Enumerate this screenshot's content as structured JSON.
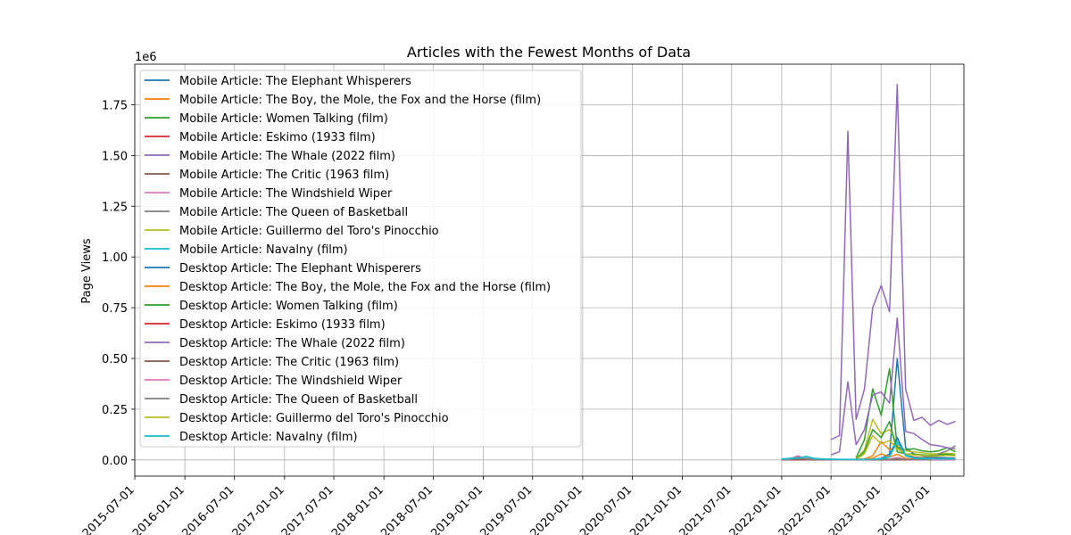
{
  "chart_data": {
    "type": "line",
    "title": "Articles with the Fewest Months of Data",
    "xlabel": "",
    "ylabel": "Page Views",
    "y_offset_label": "1e6",
    "ylim": [
      -80000,
      1950000
    ],
    "xlim": [
      "2015-07-01",
      "2023-11-01"
    ],
    "grid": true,
    "legend_position": "upper-left",
    "x_ticks": [
      "2015-07-01",
      "2016-01-01",
      "2016-07-01",
      "2017-01-01",
      "2017-07-01",
      "2018-01-01",
      "2018-07-01",
      "2019-01-01",
      "2019-07-01",
      "2020-01-01",
      "2020-07-01",
      "2021-01-01",
      "2021-07-01",
      "2022-01-01",
      "2022-07-01",
      "2023-01-01",
      "2023-07-01"
    ],
    "y_ticks": [
      0,
      250000,
      500000,
      750000,
      1000000,
      1250000,
      1500000,
      1750000
    ],
    "y_tick_labels": [
      "0.00",
      "0.25",
      "0.50",
      "0.75",
      "1.00",
      "1.25",
      "1.50",
      "1.75"
    ],
    "series": [
      {
        "name": "Mobile Article: The Elephant Whisperers",
        "color": "#1f77b4",
        "x": [
          "2022-12-01",
          "2023-01-01",
          "2023-02-01",
          "2023-03-01",
          "2023-04-01",
          "2023-05-01",
          "2023-06-01",
          "2023-07-01",
          "2023-08-01",
          "2023-09-01",
          "2023-10-01"
        ],
        "values": [
          2000,
          8000,
          30000,
          500000,
          60000,
          30000,
          20000,
          15000,
          12000,
          10000,
          9000
        ]
      },
      {
        "name": "Mobile Article: The Boy, the Mole, the Fox and the Horse (film)",
        "color": "#ff7f0e",
        "x": [
          "2022-10-01",
          "2022-11-01",
          "2022-12-01",
          "2023-01-01",
          "2023-02-01",
          "2023-03-01",
          "2023-04-01",
          "2023-05-01",
          "2023-06-01",
          "2023-07-01",
          "2023-08-01",
          "2023-09-01",
          "2023-10-01"
        ],
        "values": [
          3000,
          5000,
          20000,
          90000,
          50000,
          70000,
          25000,
          15000,
          12000,
          10000,
          8000,
          7000,
          6000
        ]
      },
      {
        "name": "Mobile Article: Women Talking (film)",
        "color": "#2ca02c",
        "x": [
          "2022-10-01",
          "2022-11-01",
          "2022-12-01",
          "2023-01-01",
          "2023-02-01",
          "2023-03-01",
          "2023-04-01",
          "2023-05-01",
          "2023-06-01",
          "2023-07-01",
          "2023-08-01",
          "2023-09-01",
          "2023-10-01"
        ],
        "values": [
          10000,
          100000,
          350000,
          220000,
          450000,
          60000,
          50000,
          55000,
          45000,
          40000,
          45000,
          60000,
          40000
        ]
      },
      {
        "name": "Mobile Article: Eskimo (1933 film)",
        "color": "#d62728",
        "x": [
          "2022-01-01",
          "2022-02-01",
          "2022-03-01",
          "2022-04-01",
          "2022-05-01",
          "2022-06-01",
          "2022-07-01",
          "2022-08-01",
          "2022-09-01",
          "2022-10-01",
          "2022-11-01",
          "2022-12-01",
          "2023-01-01",
          "2023-02-01",
          "2023-03-01",
          "2023-04-01",
          "2023-05-01",
          "2023-06-01",
          "2023-07-01",
          "2023-08-01",
          "2023-09-01",
          "2023-10-01"
        ],
        "values": [
          1500,
          1400,
          1300,
          1200,
          1100,
          1000,
          1000,
          1100,
          1000,
          900,
          1000,
          1200,
          1400,
          1300,
          1200,
          1100,
          1000,
          1000,
          900,
          900,
          800,
          800
        ]
      },
      {
        "name": "Mobile Article: The Whale (2022 film)",
        "color": "#9467bd",
        "x": [
          "2022-07-01",
          "2022-08-01",
          "2022-09-01",
          "2022-10-01",
          "2022-11-01",
          "2022-12-01",
          "2023-01-01",
          "2023-02-01",
          "2023-03-01",
          "2023-04-01",
          "2023-05-01",
          "2023-06-01",
          "2023-07-01",
          "2023-08-01",
          "2023-09-01",
          "2023-10-01"
        ],
        "values": [
          100000,
          120000,
          1620000,
          200000,
          350000,
          750000,
          860000,
          730000,
          1850000,
          350000,
          195000,
          210000,
          170000,
          195000,
          175000,
          190000
        ]
      },
      {
        "name": "Mobile Article: The Critic (1963 film)",
        "color": "#8c564b",
        "x": [
          "2022-01-01",
          "2022-02-01",
          "2022-03-01",
          "2022-04-01",
          "2022-05-01",
          "2022-06-01",
          "2022-07-01",
          "2022-08-01",
          "2022-09-01",
          "2022-10-01",
          "2022-11-01",
          "2022-12-01",
          "2023-01-01",
          "2023-02-01",
          "2023-03-01",
          "2023-04-01",
          "2023-05-01",
          "2023-06-01",
          "2023-07-01",
          "2023-08-01",
          "2023-09-01",
          "2023-10-01"
        ],
        "values": [
          800,
          700,
          700,
          600,
          600,
          600,
          500,
          600,
          500,
          500,
          600,
          700,
          900,
          800,
          2000,
          900,
          700,
          600,
          600,
          500,
          500,
          500
        ]
      },
      {
        "name": "Mobile Article: The Windshield Wiper",
        "color": "#e377c2",
        "x": [
          "2022-01-01",
          "2022-02-01",
          "2022-03-01",
          "2022-04-01",
          "2022-05-01",
          "2022-06-01",
          "2022-07-01",
          "2022-08-01",
          "2022-09-01",
          "2022-10-01",
          "2022-11-01",
          "2022-12-01",
          "2023-01-01",
          "2023-02-01",
          "2023-03-01",
          "2023-04-01",
          "2023-05-01",
          "2023-06-01",
          "2023-07-01",
          "2023-08-01",
          "2023-09-01",
          "2023-10-01"
        ],
        "values": [
          3000,
          4000,
          20000,
          6000,
          4000,
          3000,
          2500,
          2500,
          2000,
          2000,
          2500,
          3000,
          3500,
          4000,
          12000,
          3000,
          2500,
          2000,
          2000,
          2000,
          1800,
          1800
        ]
      },
      {
        "name": "Mobile Article: The Queen of Basketball",
        "color": "#7f7f7f",
        "x": [
          "2022-01-01",
          "2022-02-01",
          "2022-03-01",
          "2022-04-01",
          "2022-05-01",
          "2022-06-01",
          "2022-07-01",
          "2022-08-01",
          "2022-09-01",
          "2022-10-01",
          "2022-11-01",
          "2022-12-01",
          "2023-01-01",
          "2023-02-01",
          "2023-03-01",
          "2023-04-01",
          "2023-05-01",
          "2023-06-01",
          "2023-07-01",
          "2023-08-01",
          "2023-09-01",
          "2023-10-01"
        ],
        "values": [
          4000,
          8000,
          15000,
          6000,
          4000,
          3000,
          3000,
          2500,
          2500,
          2000,
          2000,
          3000,
          3500,
          4000,
          8000,
          4000,
          3000,
          2500,
          2500,
          2500,
          2500,
          2500
        ]
      },
      {
        "name": "Mobile Article: Guillermo del Toro's Pinocchio",
        "color": "#bcbd22",
        "x": [
          "2022-10-01",
          "2022-11-01",
          "2022-12-01",
          "2023-01-01",
          "2023-02-01",
          "2023-03-01",
          "2023-04-01",
          "2023-05-01",
          "2023-06-01",
          "2023-07-01",
          "2023-08-01",
          "2023-09-01",
          "2023-10-01"
        ],
        "values": [
          5000,
          50000,
          200000,
          130000,
          150000,
          80000,
          45000,
          40000,
          35000,
          30000,
          30000,
          32000,
          30000
        ]
      },
      {
        "name": "Mobile Article: Navalny (film)",
        "color": "#17becf",
        "x": [
          "2022-01-01",
          "2022-02-01",
          "2022-03-01",
          "2022-04-01",
          "2022-05-01",
          "2022-06-01",
          "2022-07-01",
          "2022-08-01",
          "2022-09-01",
          "2022-10-01",
          "2022-11-01",
          "2022-12-01",
          "2023-01-01",
          "2023-02-01",
          "2023-03-01",
          "2023-04-01",
          "2023-05-01",
          "2023-06-01",
          "2023-07-01",
          "2023-08-01",
          "2023-09-01",
          "2023-10-01"
        ],
        "values": [
          5000,
          8000,
          10000,
          15000,
          8000,
          5000,
          4000,
          3000,
          3000,
          3000,
          3000,
          4000,
          6000,
          20000,
          110000,
          25000,
          12000,
          9000,
          8000,
          7000,
          6000,
          6000
        ]
      },
      {
        "name": "Desktop Article: The Elephant Whisperers",
        "color": "#1f77b4",
        "x": [
          "2022-12-01",
          "2023-01-01",
          "2023-02-01",
          "2023-03-01",
          "2023-04-01",
          "2023-05-01",
          "2023-06-01",
          "2023-07-01",
          "2023-08-01",
          "2023-09-01",
          "2023-10-01"
        ],
        "values": [
          1000,
          4000,
          15000,
          110000,
          20000,
          12000,
          9000,
          8000,
          7000,
          6000,
          5500
        ]
      },
      {
        "name": "Desktop Article: The Boy, the Mole, the Fox and the Horse (film)",
        "color": "#ff7f0e",
        "x": [
          "2022-10-01",
          "2022-11-01",
          "2022-12-01",
          "2023-01-01",
          "2023-02-01",
          "2023-03-01",
          "2023-04-01",
          "2023-05-01",
          "2023-06-01",
          "2023-07-01",
          "2023-08-01",
          "2023-09-01",
          "2023-10-01"
        ],
        "values": [
          1500,
          2500,
          8000,
          30000,
          15000,
          28000,
          8000,
          5000,
          4000,
          3500,
          3000,
          2800,
          2500
        ]
      },
      {
        "name": "Desktop Article: Women Talking (film)",
        "color": "#2ca02c",
        "x": [
          "2022-10-01",
          "2022-11-01",
          "2022-12-01",
          "2023-01-01",
          "2023-02-01",
          "2023-03-01",
          "2023-04-01",
          "2023-05-01",
          "2023-06-01",
          "2023-07-01",
          "2023-08-01",
          "2023-09-01",
          "2023-10-01"
        ],
        "values": [
          5000,
          40000,
          150000,
          110000,
          190000,
          40000,
          30000,
          28000,
          25000,
          22000,
          25000,
          28000,
          22000
        ]
      },
      {
        "name": "Desktop Article: Eskimo (1933 film)",
        "color": "#d62728",
        "x": [
          "2022-01-01",
          "2022-02-01",
          "2022-03-01",
          "2022-04-01",
          "2022-05-01",
          "2022-06-01",
          "2022-07-01",
          "2022-08-01",
          "2022-09-01",
          "2022-10-01",
          "2022-11-01",
          "2022-12-01",
          "2023-01-01",
          "2023-02-01",
          "2023-03-01",
          "2023-04-01",
          "2023-05-01",
          "2023-06-01",
          "2023-07-01",
          "2023-08-01",
          "2023-09-01",
          "2023-10-01"
        ],
        "values": [
          1000,
          900,
          900,
          800,
          800,
          700,
          700,
          700,
          700,
          600,
          700,
          800,
          900,
          900,
          800,
          700,
          700,
          700,
          600,
          600,
          600,
          600
        ]
      },
      {
        "name": "Desktop Article: The Whale (2022 film)",
        "color": "#9467bd",
        "x": [
          "2022-07-01",
          "2022-08-01",
          "2022-09-01",
          "2022-10-01",
          "2022-11-01",
          "2022-12-01",
          "2023-01-01",
          "2023-02-01",
          "2023-03-01",
          "2023-04-01",
          "2023-05-01",
          "2023-06-01",
          "2023-07-01",
          "2023-08-01",
          "2023-09-01",
          "2023-10-01"
        ],
        "values": [
          25000,
          40000,
          385000,
          75000,
          150000,
          320000,
          335000,
          280000,
          700000,
          140000,
          130000,
          100000,
          75000,
          70000,
          60000,
          55000
        ]
      },
      {
        "name": "Desktop Article: The Critic (1963 film)",
        "color": "#8c564b",
        "x": [
          "2022-01-01",
          "2022-02-01",
          "2022-03-01",
          "2022-04-01",
          "2022-05-01",
          "2022-06-01",
          "2022-07-01",
          "2022-08-01",
          "2022-09-01",
          "2022-10-01",
          "2022-11-01",
          "2022-12-01",
          "2023-01-01",
          "2023-02-01",
          "2023-03-01",
          "2023-04-01",
          "2023-05-01",
          "2023-06-01",
          "2023-07-01",
          "2023-08-01",
          "2023-09-01",
          "2023-10-01"
        ],
        "values": [
          600,
          500,
          500,
          500,
          400,
          400,
          400,
          400,
          400,
          400,
          400,
          500,
          600,
          600,
          1200,
          600,
          500,
          400,
          400,
          400,
          400,
          400
        ]
      },
      {
        "name": "Desktop Article: The Windshield Wiper",
        "color": "#e377c2",
        "x": [
          "2022-01-01",
          "2022-02-01",
          "2022-03-01",
          "2022-04-01",
          "2022-05-01",
          "2022-06-01",
          "2022-07-01",
          "2022-08-01",
          "2022-09-01",
          "2022-10-01",
          "2022-11-01",
          "2022-12-01",
          "2023-01-01",
          "2023-02-01",
          "2023-03-01",
          "2023-04-01",
          "2023-05-01",
          "2023-06-01",
          "2023-07-01",
          "2023-08-01",
          "2023-09-01",
          "2023-10-01"
        ],
        "values": [
          2000,
          2500,
          12000,
          4000,
          2500,
          2000,
          1500,
          1500,
          1200,
          1200,
          1500,
          2000,
          2200,
          2500,
          6000,
          2000,
          1500,
          1200,
          1200,
          1200,
          1000,
          1000
        ]
      },
      {
        "name": "Desktop Article: The Queen of Basketball",
        "color": "#7f7f7f",
        "x": [
          "2022-01-01",
          "2022-02-01",
          "2022-03-01",
          "2022-04-01",
          "2022-05-01",
          "2022-06-01",
          "2022-07-01",
          "2022-08-01",
          "2022-09-01",
          "2022-10-01",
          "2022-11-01",
          "2022-12-01",
          "2023-01-01",
          "2023-02-01",
          "2023-03-01",
          "2023-04-01",
          "2023-05-01",
          "2023-06-01",
          "2023-07-01",
          "2023-08-01",
          "2023-09-01",
          "2023-10-01"
        ],
        "values": [
          2500,
          5000,
          9000,
          4000,
          2500,
          2000,
          2000,
          1500,
          1500,
          1200,
          1200,
          2000,
          2500,
          2500,
          5000,
          2500,
          2000,
          1500,
          1500,
          30000,
          45000,
          70000
        ]
      },
      {
        "name": "Desktop Article: Guillermo del Toro's Pinocchio",
        "color": "#bcbd22",
        "x": [
          "2022-10-01",
          "2022-11-01",
          "2022-12-01",
          "2023-01-01",
          "2023-02-01",
          "2023-03-01",
          "2023-04-01",
          "2023-05-01",
          "2023-06-01",
          "2023-07-01",
          "2023-08-01",
          "2023-09-01",
          "2023-10-01"
        ],
        "values": [
          3000,
          30000,
          120000,
          80000,
          95000,
          55000,
          30000,
          25000,
          22000,
          20000,
          20000,
          22000,
          20000
        ]
      },
      {
        "name": "Desktop Article: Navalny (film)",
        "color": "#17becf",
        "x": [
          "2022-01-01",
          "2022-02-01",
          "2022-03-01",
          "2022-04-01",
          "2022-05-01",
          "2022-06-01",
          "2022-07-01",
          "2022-08-01",
          "2022-09-01",
          "2022-10-01",
          "2022-11-01",
          "2022-12-01",
          "2023-01-01",
          "2023-02-01",
          "2023-03-01",
          "2023-04-01",
          "2023-05-01",
          "2023-06-01",
          "2023-07-01",
          "2023-08-01",
          "2023-09-01",
          "2023-10-01"
        ],
        "values": [
          4000,
          6000,
          8000,
          18000,
          6000,
          4000,
          3000,
          2500,
          2500,
          2500,
          2500,
          3000,
          5000,
          15000,
          90000,
          20000,
          9000,
          7000,
          6000,
          5000,
          5000,
          5000
        ]
      }
    ]
  }
}
